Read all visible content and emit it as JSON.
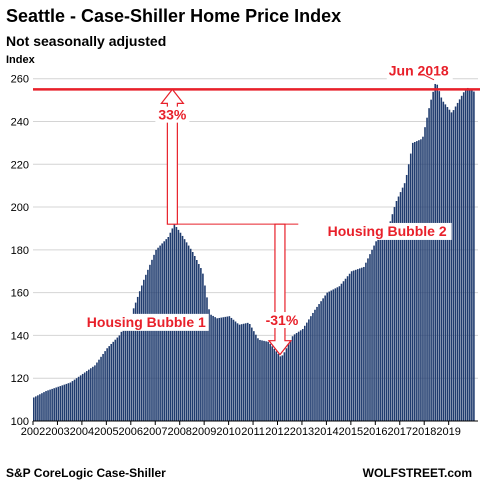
{
  "chart_data": {
    "type": "bar",
    "title": "Seattle - Case-Shiller Home Price Index",
    "subtitle": "Not seasonally adjusted",
    "ylabel": "Index",
    "xlabel": "",
    "ylim": [
      100,
      265
    ],
    "yticks": [
      100,
      120,
      140,
      160,
      180,
      200,
      220,
      240,
      260
    ],
    "xlim": [
      2002,
      2020.2
    ],
    "xticks": [
      2002,
      2003,
      2004,
      2005,
      2006,
      2007,
      2008,
      2009,
      2010,
      2011,
      2012,
      2013,
      2014,
      2015,
      2016,
      2017,
      2018,
      2019
    ],
    "xtick_labels": [
      "2002",
      "2003",
      "2004",
      "2005",
      "2006",
      "2007",
      "2008",
      "2009",
      "2010",
      "2011",
      "2012",
      "2013",
      "2014",
      "2015",
      "2016",
      "2017",
      "2018",
      "2019"
    ],
    "grid": "horizontal",
    "series": [
      {
        "frequency": "monthly",
        "start": "2002-01",
        "color": "#1f3b6e",
        "anchors": [
          [
            2002.0,
            111
          ],
          [
            2002.5,
            114
          ],
          [
            2003.0,
            116
          ],
          [
            2003.5,
            118
          ],
          [
            2004.0,
            122
          ],
          [
            2004.5,
            126
          ],
          [
            2005.0,
            134
          ],
          [
            2005.5,
            140
          ],
          [
            2006.0,
            150
          ],
          [
            2006.5,
            166
          ],
          [
            2007.0,
            180
          ],
          [
            2007.5,
            186
          ],
          [
            2007.75,
            192
          ],
          [
            2008.0,
            188
          ],
          [
            2008.5,
            179
          ],
          [
            2008.9,
            170
          ],
          [
            2009.2,
            150
          ],
          [
            2009.5,
            148
          ],
          [
            2010.0,
            149
          ],
          [
            2010.4,
            145
          ],
          [
            2010.8,
            146
          ],
          [
            2011.2,
            138
          ],
          [
            2011.6,
            137
          ],
          [
            2012.1,
            130
          ],
          [
            2012.2,
            131
          ],
          [
            2012.6,
            140
          ],
          [
            2013.0,
            143
          ],
          [
            2013.5,
            152
          ],
          [
            2014.0,
            160
          ],
          [
            2014.5,
            163
          ],
          [
            2015.0,
            170
          ],
          [
            2015.5,
            172
          ],
          [
            2016.0,
            184
          ],
          [
            2016.5,
            190
          ],
          [
            2016.8,
            202
          ],
          [
            2017.2,
            212
          ],
          [
            2017.5,
            230
          ],
          [
            2017.9,
            232
          ],
          [
            2018.2,
            248
          ],
          [
            2018.45,
            259
          ],
          [
            2018.7,
            250
          ],
          [
            2019.1,
            244
          ],
          [
            2019.4,
            250
          ],
          [
            2019.7,
            256
          ],
          [
            2020.0,
            254
          ]
        ]
      }
    ],
    "reference_line": {
      "value": 255,
      "color": "#e8202a"
    },
    "annotations": [
      {
        "text": "Jun 2018",
        "color": "#e8202a"
      },
      {
        "text": "33%",
        "color": "#e8202a"
      },
      {
        "text": "-31%",
        "color": "#e8202a"
      },
      {
        "text": "Housing Bubble 1",
        "color": "#e8202a"
      },
      {
        "text": "Housing Bubble 2",
        "color": "#e8202a"
      }
    ],
    "source": "S&P CoreLogic Case-Shiller",
    "brand": "WOLFSTREET.com"
  }
}
